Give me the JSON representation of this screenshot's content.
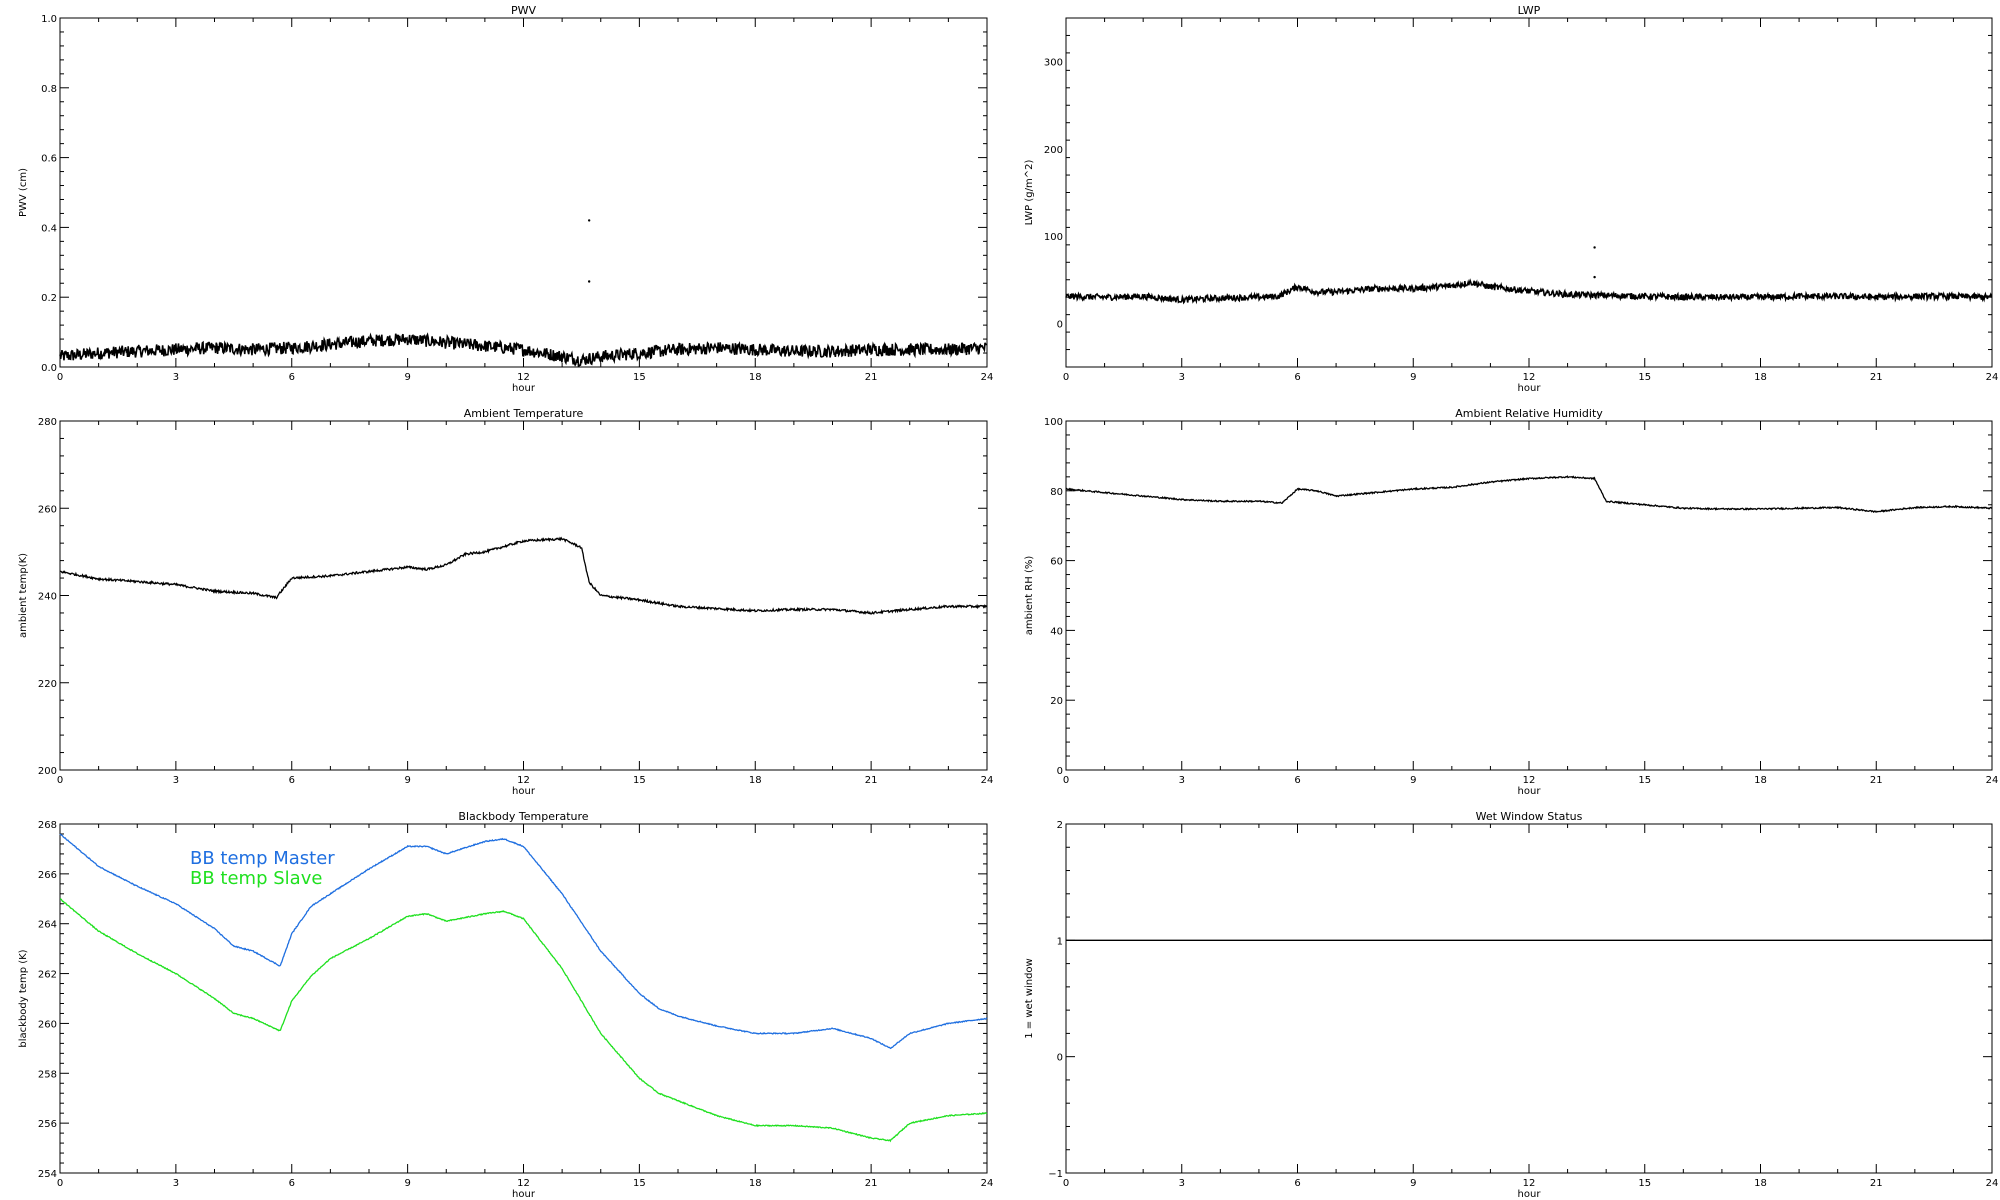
{
  "chart_data": [
    {
      "id": "pwv",
      "type": "line",
      "title": "PWV",
      "xlabel": "hour",
      "ylabel": "PWV (cm)",
      "xlim": [
        0,
        24
      ],
      "ylim": [
        0,
        1.0
      ],
      "xticks": [
        0,
        3,
        6,
        9,
        12,
        15,
        18,
        21,
        24
      ],
      "yticks": [
        0.0,
        0.2,
        0.4,
        0.6,
        0.8,
        1.0
      ],
      "ytick_labels": [
        "0.0",
        "0.2",
        "0.4",
        "0.6",
        "0.8",
        "1.0"
      ],
      "series": [
        {
          "color": "#000000",
          "noise": 0.018,
          "x": [
            0,
            1,
            2,
            3,
            4,
            5,
            6,
            7,
            8,
            9,
            10,
            11,
            12,
            13,
            13.5,
            14,
            15,
            16,
            17,
            18,
            19,
            20,
            21,
            22,
            23,
            24
          ],
          "y": [
            0.03,
            0.04,
            0.045,
            0.05,
            0.055,
            0.05,
            0.055,
            0.065,
            0.075,
            0.08,
            0.07,
            0.06,
            0.05,
            0.03,
            0.02,
            0.03,
            0.04,
            0.05,
            0.055,
            0.05,
            0.045,
            0.045,
            0.05,
            0.05,
            0.05,
            0.055
          ]
        }
      ],
      "points": [
        {
          "x": 13.7,
          "y": 0.42
        },
        {
          "x": 13.7,
          "y": 0.245
        }
      ]
    },
    {
      "id": "lwp",
      "type": "line",
      "title": "LWP",
      "xlabel": "hour",
      "ylabel": "LWP (g/m^2)",
      "xlim": [
        0,
        24
      ],
      "ylim": [
        -50,
        350
      ],
      "xticks": [
        0,
        3,
        6,
        9,
        12,
        15,
        18,
        21,
        24
      ],
      "yticks": [
        0,
        100,
        200,
        300
      ],
      "ytick_labels": [
        "0",
        "100",
        "200",
        "300"
      ],
      "series": [
        {
          "color": "#000000",
          "noise": 3.5,
          "x": [
            0,
            1,
            2,
            3,
            4,
            5,
            5.5,
            6,
            6.5,
            7,
            8,
            9,
            10,
            10.5,
            11,
            12,
            13,
            14,
            15,
            16,
            17,
            18,
            19,
            20,
            21,
            22,
            23,
            24
          ],
          "y": [
            31,
            30,
            31,
            27,
            29,
            30,
            31,
            42,
            36,
            36,
            40,
            40,
            43,
            47,
            42,
            37,
            33,
            32,
            31,
            30,
            30,
            30,
            31,
            31,
            30,
            31,
            31,
            30
          ]
        }
      ],
      "points": [
        {
          "x": 13.7,
          "y": 87
        },
        {
          "x": 13.7,
          "y": 53
        }
      ]
    },
    {
      "id": "ambient-temp",
      "type": "line",
      "title": "Ambient Temperature",
      "xlabel": "hour",
      "ylabel": "ambient temp(K)",
      "xlim": [
        0,
        24
      ],
      "ylim": [
        200,
        280
      ],
      "xticks": [
        0,
        3,
        6,
        9,
        12,
        15,
        18,
        21,
        24
      ],
      "yticks": [
        200,
        220,
        240,
        260,
        280
      ],
      "ytick_labels": [
        "200",
        "220",
        "240",
        "260",
        "280"
      ],
      "series": [
        {
          "color": "#000000",
          "noise": 0.25,
          "x": [
            0,
            1,
            2,
            3,
            4,
            5,
            5.6,
            6,
            7,
            8,
            9,
            9.5,
            10,
            10.5,
            11,
            12,
            13,
            13.5,
            13.7,
            14,
            15,
            16,
            17,
            18,
            19,
            20,
            21,
            22,
            23,
            24
          ],
          "y": [
            245.5,
            243.8,
            243.2,
            242.5,
            241,
            240.5,
            239.5,
            244,
            244.5,
            245.5,
            246.5,
            246,
            247,
            249.5,
            250,
            252.5,
            253,
            251,
            243,
            240,
            239,
            237.5,
            237,
            236.5,
            236.8,
            236.8,
            236,
            236.8,
            237.5,
            237.5
          ]
        }
      ],
      "points": []
    },
    {
      "id": "ambient-rh",
      "type": "line",
      "title": "Ambient Relative Humidity",
      "xlabel": "hour",
      "ylabel": "ambient RH (%)",
      "xlim": [
        0,
        24
      ],
      "ylim": [
        0,
        100
      ],
      "xticks": [
        0,
        3,
        6,
        9,
        12,
        15,
        18,
        21,
        24
      ],
      "yticks": [
        0,
        20,
        40,
        60,
        80,
        100
      ],
      "ytick_labels": [
        "0",
        "20",
        "40",
        "60",
        "80",
        "100"
      ],
      "series": [
        {
          "color": "#000000",
          "noise": 0.2,
          "x": [
            0,
            1,
            2,
            3,
            4,
            5,
            5.6,
            6,
            6.5,
            7,
            8,
            9,
            10,
            11,
            12,
            13,
            13.7,
            14,
            15,
            16,
            17,
            18,
            19,
            20,
            21,
            22,
            23,
            24
          ],
          "y": [
            80.5,
            79.5,
            78.5,
            77.5,
            77,
            77,
            76.5,
            80.5,
            80,
            78.5,
            79.5,
            80.5,
            81,
            82.5,
            83.5,
            84,
            83.5,
            77,
            76,
            75,
            74.8,
            74.8,
            75,
            75.2,
            74,
            75.2,
            75.5,
            75
          ]
        }
      ],
      "points": []
    },
    {
      "id": "blackbody-temp",
      "type": "line",
      "title": "Blackbody Temperature",
      "xlabel": "hour",
      "ylabel": "blackbody temp (K)",
      "xlim": [
        0,
        24
      ],
      "ylim": [
        254,
        268
      ],
      "xticks": [
        0,
        3,
        6,
        9,
        12,
        15,
        18,
        21,
        24
      ],
      "yticks": [
        254,
        256,
        258,
        260,
        262,
        264,
        266,
        268
      ],
      "ytick_labels": [
        "254",
        "256",
        "258",
        "260",
        "262",
        "264",
        "266",
        "268"
      ],
      "legend_position": "top-left",
      "series": [
        {
          "name": "BB temp Master",
          "color": "#1f6fe0",
          "noise": 0.02,
          "x": [
            0,
            1,
            2,
            3,
            4,
            4.5,
            5,
            5.7,
            6,
            6.5,
            7,
            8,
            9,
            9.5,
            10,
            11,
            11.5,
            12,
            13,
            14,
            15,
            15.5,
            16,
            17,
            18,
            19,
            20,
            21,
            21.5,
            22,
            23,
            24
          ],
          "y": [
            267.6,
            266.3,
            265.5,
            264.8,
            263.8,
            263.1,
            262.9,
            262.3,
            263.6,
            264.7,
            265.2,
            266.2,
            267.1,
            267.1,
            266.8,
            267.3,
            267.4,
            267.1,
            265.2,
            262.9,
            261.2,
            260.6,
            260.3,
            259.9,
            259.6,
            259.6,
            259.8,
            259.4,
            259.0,
            259.6,
            260.0,
            260.2
          ]
        },
        {
          "name": "BB temp Slave",
          "color": "#1fe01f",
          "noise": 0.02,
          "x": [
            0,
            1,
            2,
            3,
            4,
            4.5,
            5,
            5.7,
            6,
            6.5,
            7,
            8,
            9,
            9.5,
            10,
            11,
            11.5,
            12,
            13,
            14,
            15,
            15.5,
            16,
            17,
            18,
            19,
            20,
            21,
            21.5,
            22,
            23,
            24
          ],
          "y": [
            265.0,
            263.7,
            262.8,
            262.0,
            261.0,
            260.4,
            260.2,
            259.7,
            260.9,
            261.9,
            262.6,
            263.4,
            264.3,
            264.4,
            264.1,
            264.4,
            264.5,
            264.2,
            262.2,
            259.6,
            257.8,
            257.2,
            256.9,
            256.3,
            255.9,
            255.9,
            255.8,
            255.4,
            255.3,
            256.0,
            256.3,
            256.4
          ]
        }
      ],
      "points": []
    },
    {
      "id": "wet-window",
      "type": "line",
      "title": "Wet Window Status",
      "xlabel": "hour",
      "ylabel": "1 = wet window",
      "xlim": [
        0,
        24
      ],
      "ylim": [
        -1,
        2
      ],
      "xticks": [
        0,
        3,
        6,
        9,
        12,
        15,
        18,
        21,
        24
      ],
      "yticks": [
        -1,
        0,
        1,
        2
      ],
      "ytick_labels": [
        "−1",
        "0",
        "1",
        "2"
      ],
      "series": [
        {
          "color": "#000000",
          "noise": 0,
          "x": [
            0,
            24
          ],
          "y": [
            1,
            1
          ]
        }
      ],
      "points": []
    }
  ]
}
